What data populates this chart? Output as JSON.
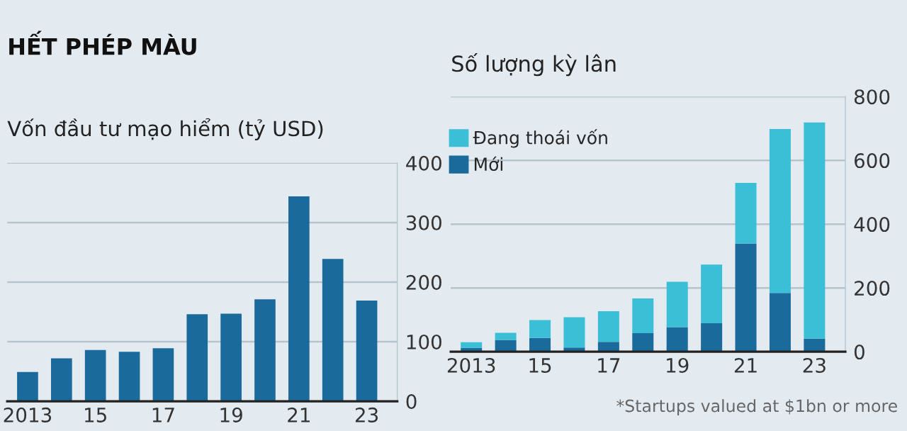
{
  "chart_data": [
    {
      "type": "bar",
      "title": "HẾT PHÉP MÀU",
      "subtitle": "Vốn đầu tư mạo hiểm (tỷ USD)",
      "categories": [
        "2013",
        null,
        "15",
        null,
        "17",
        null,
        "19",
        null,
        "21",
        null,
        "23"
      ],
      "series": [
        {
          "color": "#1b6a9c",
          "values": [
            49,
            72,
            86,
            83,
            89,
            146,
            147,
            171,
            344,
            239,
            169
          ]
        }
      ],
      "ylim": [
        0,
        400
      ],
      "yticks": [
        0,
        100,
        200,
        300,
        400
      ],
      "grid": "y"
    },
    {
      "type": "bar",
      "title": "Số lượng kỳ lân",
      "stacked": true,
      "legend": "top left",
      "categories": [
        "2013",
        null,
        "15",
        null,
        "17",
        null,
        "19",
        null,
        "21",
        null,
        "23"
      ],
      "series": [
        {
          "name": "Mới",
          "color": "#1b6a9c",
          "values": [
            12,
            37,
            43,
            13,
            31,
            58,
            77,
            89,
            339,
            184,
            41
          ]
        },
        {
          "name": "Đang thoái vốn",
          "color": "#3bbfd6",
          "values": [
            18,
            22,
            56,
            95,
            96,
            109,
            142,
            184,
            190,
            514,
            678
          ]
        }
      ],
      "ylim": [
        0,
        800
      ],
      "yticks": [
        0,
        200,
        400,
        600,
        800
      ],
      "grid": "y",
      "annotations": [
        "*Startups valued at $1bn or more"
      ]
    }
  ]
}
